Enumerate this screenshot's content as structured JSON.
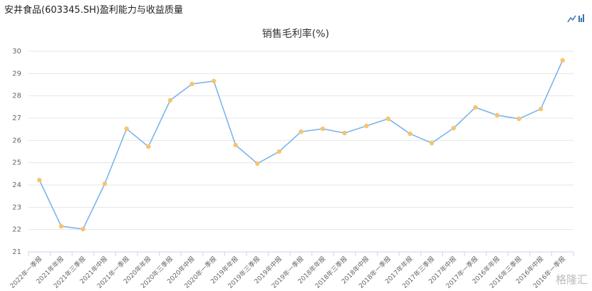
{
  "header": {
    "title": "安井食品(603345.SH)盈利能力与收益质量"
  },
  "watermark": "格隆汇",
  "chart_data": {
    "type": "line",
    "title": "销售毛利率(%)",
    "categories": [
      "2022年一季报",
      "2021年年报",
      "2021年三季报",
      "2021年中报",
      "2021年一季报",
      "2020年年报",
      "2020年三季报",
      "2020年中报",
      "2020年一季报",
      "2019年年报",
      "2019年三季报",
      "2019年中报",
      "2019年一季报",
      "2018年年报",
      "2018年三季报",
      "2018年中报",
      "2018年一季报",
      "2017年年报",
      "2017年三季报",
      "2017年中报",
      "2017年一季报",
      "2016年年报",
      "2016年三季报",
      "2016年中报",
      "2016年一季报"
    ],
    "values": [
      24.22,
      22.15,
      22.02,
      24.06,
      26.52,
      25.72,
      27.8,
      28.53,
      28.66,
      25.79,
      24.96,
      25.5,
      26.39,
      26.52,
      26.33,
      26.65,
      26.97,
      26.3,
      25.88,
      26.55,
      27.48,
      27.13,
      26.97,
      27.41,
      29.59
    ],
    "color": "#7cb5ec",
    "marker_color": "#f7c46c",
    "ylim": [
      21,
      30
    ],
    "yticks": [
      21,
      22,
      23,
      24,
      25,
      26,
      27,
      28,
      29,
      30
    ],
    "grid": true
  }
}
